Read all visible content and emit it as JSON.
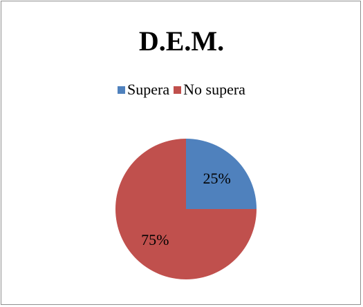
{
  "chart_data": {
    "type": "pie",
    "title": "D.E.M.",
    "legend_position": "top",
    "categories": [
      "Supera",
      "No supera"
    ],
    "values": [
      25,
      75
    ],
    "data_labels": [
      "25%",
      "75%"
    ],
    "colors": [
      "#4f81bd",
      "#c0504d"
    ]
  }
}
